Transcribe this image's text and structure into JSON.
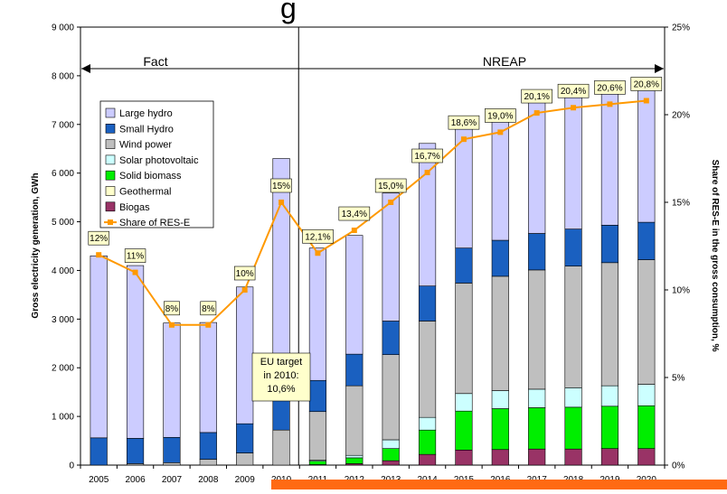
{
  "chart_data": {
    "type": "bar",
    "title_fragment": "g",
    "xlabel": "",
    "ylabel": "Gross electricity generation, GWh",
    "y2label": "Share of RES-E in the gross consumption, %",
    "ylim": [
      0,
      9000
    ],
    "y2lim": [
      0,
      25
    ],
    "yticks": [
      "0",
      "1 000",
      "2 000",
      "3 000",
      "4 000",
      "5 000",
      "6 000",
      "7 000",
      "8 000",
      "9 000"
    ],
    "y2ticks": [
      "0%",
      "5%",
      "10%",
      "15%",
      "20%",
      "25%"
    ],
    "grid": false,
    "legend_position": "left",
    "categories": [
      "2005",
      "2006",
      "2007",
      "2008",
      "2009",
      "2010",
      "2011",
      "2012",
      "2013",
      "2014",
      "2015",
      "2016",
      "2017",
      "2018",
      "2019",
      "2020"
    ],
    "series": [
      {
        "name": "Biogas",
        "color": "#993366",
        "values": [
          0,
          0,
          0,
          0,
          0,
          0,
          10,
          30,
          90,
          220,
          310,
          320,
          330,
          330,
          340,
          340
        ]
      },
      {
        "name": "Geothermal",
        "color": "#ffffcc",
        "values": [
          0,
          0,
          0,
          0,
          0,
          0,
          0,
          0,
          0,
          0,
          0,
          0,
          0,
          0,
          0,
          0
        ]
      },
      {
        "name": "Solid biomass",
        "color": "#00ee00",
        "values": [
          0,
          0,
          0,
          0,
          0,
          0,
          70,
          120,
          250,
          500,
          800,
          840,
          850,
          860,
          870,
          880
        ]
      },
      {
        "name": "Solar photovoltaic",
        "color": "#ccffff",
        "values": [
          0,
          0,
          0,
          0,
          0,
          0,
          20,
          50,
          180,
          260,
          360,
          370,
          380,
          400,
          420,
          440
        ]
      },
      {
        "name": "Wind power",
        "color": "#bfbfbf",
        "values": [
          0,
          30,
          50,
          120,
          250,
          720,
          1000,
          1430,
          1750,
          1980,
          2270,
          2350,
          2450,
          2500,
          2530,
          2560
        ]
      },
      {
        "name": "Small Hydro",
        "color": "#1a60c0",
        "values": [
          560,
          520,
          520,
          550,
          600,
          730,
          640,
          650,
          690,
          720,
          720,
          740,
          750,
          760,
          770,
          770
        ]
      },
      {
        "name": "Large hydro",
        "color": "#ccccff",
        "values": [
          3740,
          3550,
          2350,
          2260,
          2810,
          4850,
          2720,
          2440,
          2630,
          2930,
          2690,
          2690,
          2890,
          2950,
          2940,
          2930
        ]
      }
    ],
    "line_series": {
      "name": "Share of RES-E",
      "color": "#ff9900",
      "values": [
        12,
        11,
        8,
        8,
        10,
        15,
        12.1,
        13.4,
        15.0,
        16.7,
        18.6,
        19.0,
        20.1,
        20.4,
        20.6,
        20.8
      ],
      "labels": [
        "12%",
        "11%",
        "8%",
        "8%",
        "10%",
        "15%",
        "12,1%",
        "13,4%",
        "15,0%",
        "16,7%",
        "18,6%",
        "19,0%",
        "20,1%",
        "20,4%",
        "20,6%",
        "20,8%"
      ]
    },
    "regions": [
      {
        "label": "Fact",
        "from": "2005",
        "to": "2010"
      },
      {
        "label": "NREAP",
        "from": "2011",
        "to": "2020"
      }
    ],
    "annotation": "EU target in 2010: 10,6%",
    "annotation_lines": [
      "EU target",
      "in 2010:",
      "10,6%"
    ]
  }
}
